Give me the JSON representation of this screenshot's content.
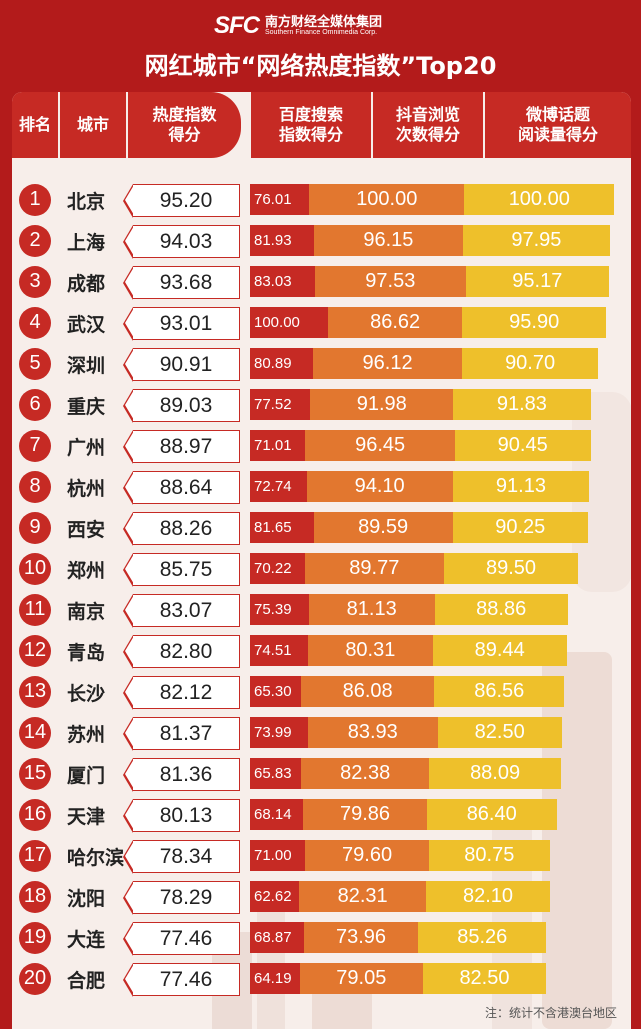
{
  "brand": {
    "logo": "SFC",
    "cn": "南方财经全媒体集团",
    "en": "Southern Finance Omnimedia Corp."
  },
  "title": "网红城市“网络热度指数”Top20",
  "headers": {
    "rank": "排名",
    "city": "城市",
    "total": "热度指数\n得分",
    "baidu": "百度搜索\n指数得分",
    "douyin": "抖音浏览\n次数得分",
    "weibo": "微博话题\n阅读量得分"
  },
  "colors": {
    "background": "#b31b1b",
    "header": "#c62a24",
    "baidu": "#c62a24",
    "douyin": "#e2772f",
    "weibo": "#eec02b",
    "card": "#f7eeea"
  },
  "chart_data": {
    "type": "table",
    "columns": [
      "排名",
      "城市",
      "热度指数得分",
      "百度搜索指数得分",
      "抖音浏览次数得分",
      "微博话题阅读量得分"
    ],
    "rows": [
      {
        "rank": "1",
        "city": "北京",
        "total": "95.20",
        "baidu": "76.01",
        "douyin": "100.00",
        "weibo": "100.00"
      },
      {
        "rank": "2",
        "city": "上海",
        "total": "94.03",
        "baidu": "81.93",
        "douyin": "96.15",
        "weibo": "97.95"
      },
      {
        "rank": "3",
        "city": "成都",
        "total": "93.68",
        "baidu": "83.03",
        "douyin": "97.53",
        "weibo": "95.17"
      },
      {
        "rank": "4",
        "city": "武汉",
        "total": "93.01",
        "baidu": "100.00",
        "douyin": "86.62",
        "weibo": "95.90"
      },
      {
        "rank": "5",
        "city": "深圳",
        "total": "90.91",
        "baidu": "80.89",
        "douyin": "96.12",
        "weibo": "90.70"
      },
      {
        "rank": "6",
        "city": "重庆",
        "total": "89.03",
        "baidu": "77.52",
        "douyin": "91.98",
        "weibo": "91.83"
      },
      {
        "rank": "7",
        "city": "广州",
        "total": "88.97",
        "baidu": "71.01",
        "douyin": "96.45",
        "weibo": "90.45"
      },
      {
        "rank": "8",
        "city": "杭州",
        "total": "88.64",
        "baidu": "72.74",
        "douyin": "94.10",
        "weibo": "91.13"
      },
      {
        "rank": "9",
        "city": "西安",
        "total": "88.26",
        "baidu": "81.65",
        "douyin": "89.59",
        "weibo": "90.25"
      },
      {
        "rank": "10",
        "city": "郑州",
        "total": "85.75",
        "baidu": "70.22",
        "douyin": "89.77",
        "weibo": "89.50"
      },
      {
        "rank": "11",
        "city": "南京",
        "total": "83.07",
        "baidu": "75.39",
        "douyin": "81.13",
        "weibo": "88.86"
      },
      {
        "rank": "12",
        "city": "青岛",
        "total": "82.80",
        "baidu": "74.51",
        "douyin": "80.31",
        "weibo": "89.44"
      },
      {
        "rank": "13",
        "city": "长沙",
        "total": "82.12",
        "baidu": "65.30",
        "douyin": "86.08",
        "weibo": "86.56"
      },
      {
        "rank": "14",
        "city": "苏州",
        "total": "81.37",
        "baidu": "73.99",
        "douyin": "83.93",
        "weibo": "82.50"
      },
      {
        "rank": "15",
        "city": "厦门",
        "total": "81.36",
        "baidu": "65.83",
        "douyin": "82.38",
        "weibo": "88.09"
      },
      {
        "rank": "16",
        "city": "天津",
        "total": "80.13",
        "baidu": "68.14",
        "douyin": "79.86",
        "weibo": "86.40"
      },
      {
        "rank": "17",
        "city": "哈尔滨",
        "total": "78.34",
        "baidu": "71.00",
        "douyin": "79.60",
        "weibo": "80.75"
      },
      {
        "rank": "18",
        "city": "沈阳",
        "total": "78.29",
        "baidu": "62.62",
        "douyin": "82.31",
        "weibo": "82.10"
      },
      {
        "rank": "19",
        "city": "大连",
        "total": "77.46",
        "baidu": "68.87",
        "douyin": "73.96",
        "weibo": "85.26"
      },
      {
        "rank": "20",
        "city": "合肥",
        "total": "77.46",
        "baidu": "64.19",
        "douyin": "79.05",
        "weibo": "82.50"
      }
    ]
  },
  "note": "注：统计不含港澳台地区"
}
